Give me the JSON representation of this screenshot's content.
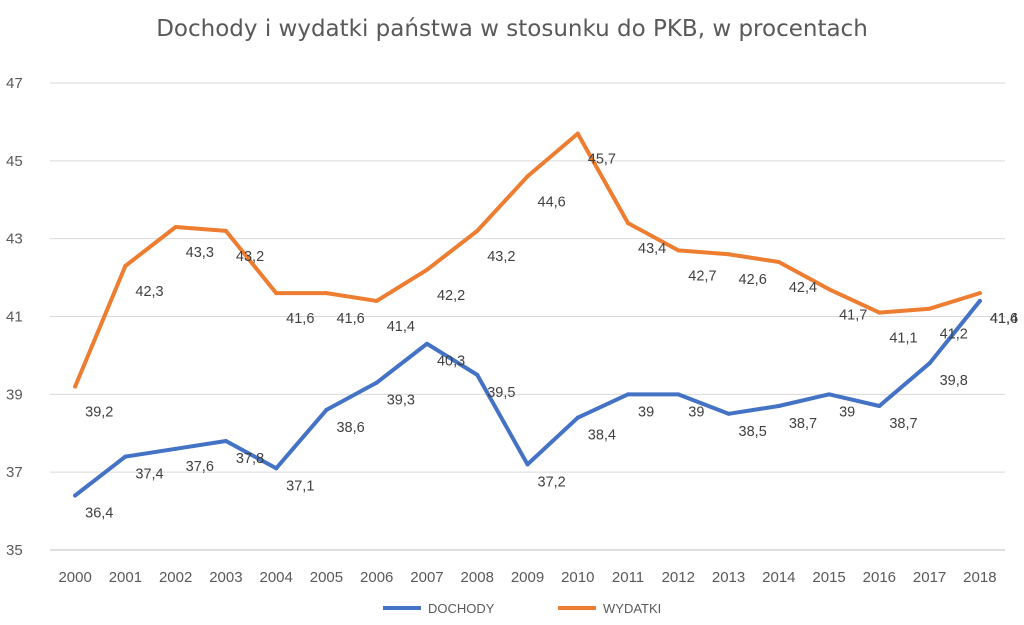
{
  "chart_data": {
    "type": "line",
    "title": "Dochody i wydatki państwa w stosunku do PKB, w procentach",
    "xlabel": "",
    "ylabel": "",
    "categories": [
      "2000",
      "2001",
      "2002",
      "2003",
      "2004",
      "2005",
      "2006",
      "2007",
      "2008",
      "2009",
      "2010",
      "2011",
      "2012",
      "2013",
      "2014",
      "2015",
      "2016",
      "2017",
      "2018"
    ],
    "yticks": [
      "35",
      "37",
      "39",
      "41",
      "43",
      "45",
      "47"
    ],
    "ylim": [
      35,
      47
    ],
    "grid": true,
    "legend": "bottom",
    "series": [
      {
        "name": "DOCHODY",
        "color": "#4472C4",
        "values": [
          36.4,
          37.4,
          37.6,
          37.8,
          37.1,
          38.6,
          39.3,
          40.3,
          39.5,
          37.2,
          38.4,
          39,
          39,
          38.5,
          38.7,
          39,
          38.7,
          39.8,
          41.4
        ],
        "labels": [
          "36,4",
          "37,4",
          "37,6",
          "37,8",
          "37,1",
          "38,6",
          "39,3",
          "40,3",
          "39,5",
          "37,2",
          "38,4",
          "39",
          "39",
          "38,5",
          "38,7",
          "39",
          "38,7",
          "39,8",
          "41,4"
        ]
      },
      {
        "name": "WYDATKI",
        "color": "#ED7D31",
        "values": [
          39.2,
          42.3,
          43.3,
          43.2,
          41.6,
          41.6,
          41.4,
          42.2,
          43.2,
          44.6,
          45.7,
          43.4,
          42.7,
          42.6,
          42.4,
          41.7,
          41.1,
          41.2,
          41.6
        ],
        "labels": [
          "39,2",
          "42,3",
          "43,3",
          "43,2",
          "41,6",
          "41,6",
          "41,4",
          "42,2",
          "43,2",
          "44,6",
          "45,7",
          "43,4",
          "42,7",
          "42,6",
          "42,4",
          "41,7",
          "41,1",
          "41,2",
          "41,6"
        ]
      }
    ]
  }
}
